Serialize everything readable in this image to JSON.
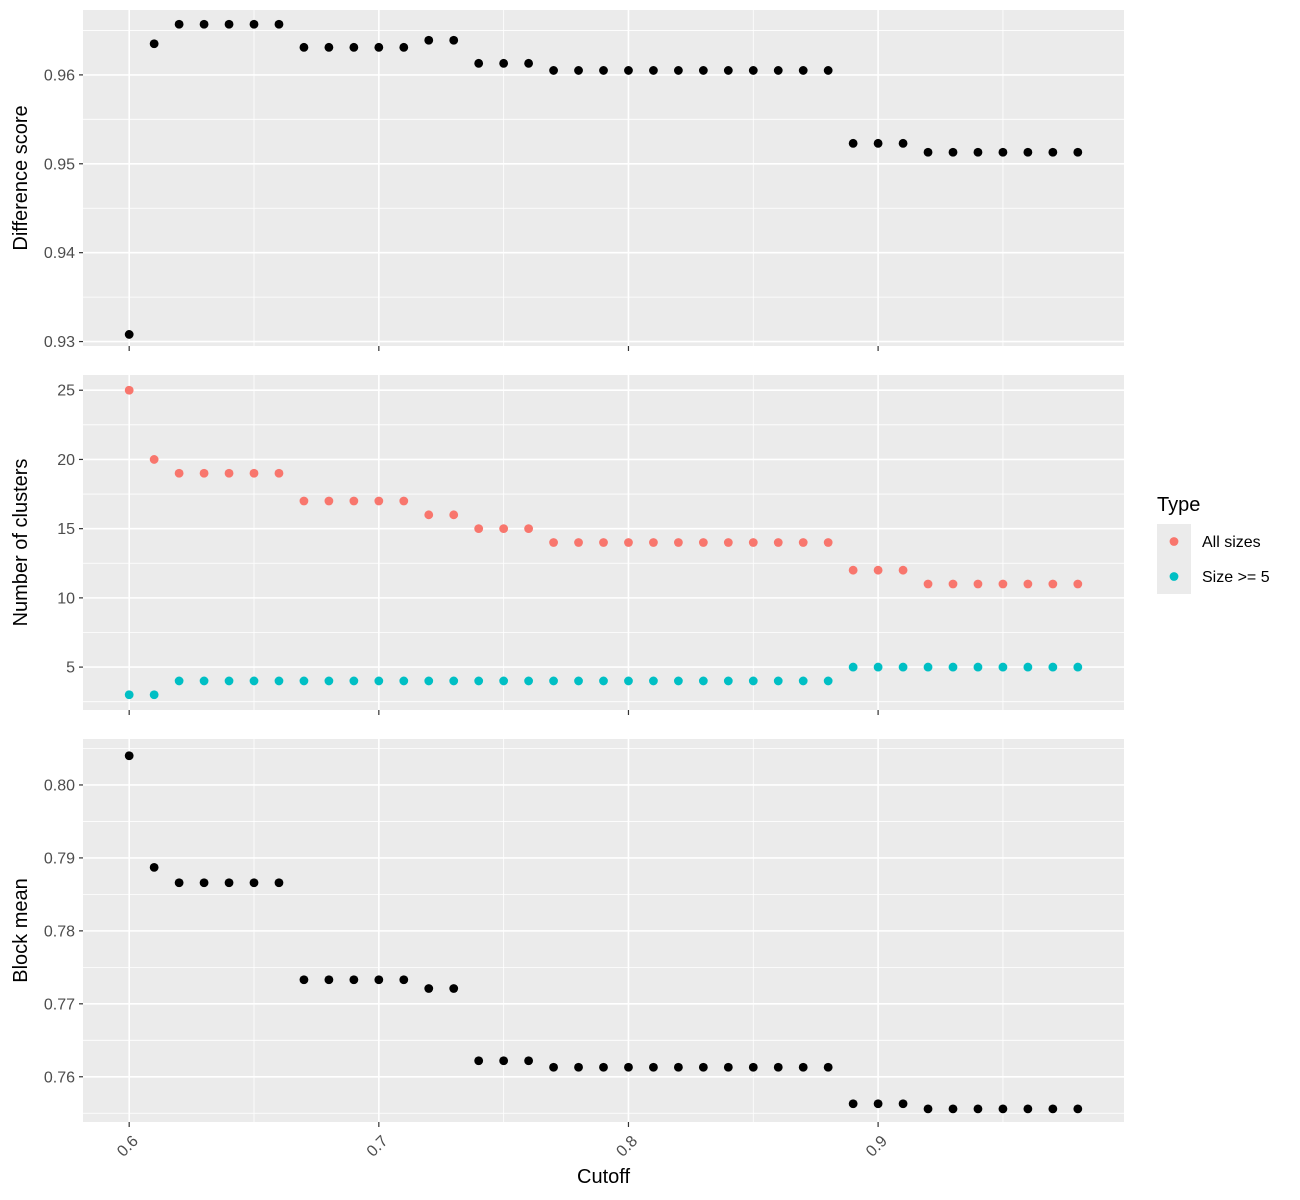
{
  "chart_data": {
    "type": "scatter",
    "xlabel": "Cutoff",
    "x_ticks": [
      "0.6",
      "0.7",
      "0.8",
      "0.9"
    ],
    "x_tick_values": [
      0.6,
      0.7,
      0.8,
      0.9
    ],
    "xlim": [
      0.5815,
      0.9985
    ],
    "x_tick_label_rotation_deg": -45,
    "x": [
      0.6,
      0.61,
      0.62,
      0.63,
      0.64,
      0.65,
      0.66,
      0.67,
      0.68,
      0.69,
      0.7,
      0.71,
      0.72,
      0.73,
      0.74,
      0.75,
      0.76,
      0.77,
      0.78,
      0.79,
      0.8,
      0.81,
      0.82,
      0.83,
      0.84,
      0.85,
      0.86,
      0.87,
      0.88,
      0.89,
      0.9,
      0.91,
      0.92,
      0.93,
      0.94,
      0.95,
      0.96,
      0.97,
      0.98
    ],
    "grid": true,
    "background": "#ebebeb",
    "panels": [
      {
        "ylabel": "Difference score",
        "ylim": [
          0.9295,
          0.9673
        ],
        "y_ticks": [
          0.93,
          0.94,
          0.95,
          0.96
        ],
        "y_tick_labels": [
          "0.93",
          "0.94",
          "0.95",
          "0.96"
        ],
        "series": [
          {
            "color": "#000000",
            "values": [
              0.9308,
              0.9635,
              0.9657,
              0.9657,
              0.9657,
              0.9657,
              0.9657,
              0.9631,
              0.9631,
              0.9631,
              0.9631,
              0.9631,
              0.9639,
              0.9639,
              0.9613,
              0.9613,
              0.9613,
              0.9605,
              0.9605,
              0.9605,
              0.9605,
              0.9605,
              0.9605,
              0.9605,
              0.9605,
              0.9605,
              0.9605,
              0.9605,
              0.9605,
              0.9523,
              0.9523,
              0.9523,
              0.9513,
              0.9513,
              0.9513,
              0.9513,
              0.9513,
              0.9513,
              0.9513
            ]
          }
        ]
      },
      {
        "ylabel": "Number of clusters",
        "ylim": [
          1.9,
          26.1
        ],
        "y_ticks": [
          5,
          10,
          15,
          20,
          25
        ],
        "y_tick_labels": [
          "5",
          "10",
          "15",
          "20",
          "25"
        ],
        "series": [
          {
            "name": "All sizes",
            "color": "#f8766d",
            "values": [
              25,
              20,
              19,
              19,
              19,
              19,
              19,
              17,
              17,
              17,
              17,
              17,
              16,
              16,
              15,
              15,
              15,
              14,
              14,
              14,
              14,
              14,
              14,
              14,
              14,
              14,
              14,
              14,
              14,
              12,
              12,
              12,
              11,
              11,
              11,
              11,
              11,
              11,
              11
            ]
          },
          {
            "name": "Size >= 5",
            "color": "#00bfc4",
            "values": [
              3,
              3,
              4,
              4,
              4,
              4,
              4,
              4,
              4,
              4,
              4,
              4,
              4,
              4,
              4,
              4,
              4,
              4,
              4,
              4,
              4,
              4,
              4,
              4,
              4,
              4,
              4,
              4,
              4,
              5,
              5,
              5,
              5,
              5,
              5,
              5,
              5,
              5,
              5
            ]
          }
        ]
      },
      {
        "ylabel": "Block mean",
        "ylim": [
          0.7538,
          0.8063
        ],
        "y_ticks": [
          0.76,
          0.77,
          0.78,
          0.79,
          0.8
        ],
        "y_tick_labels": [
          "0.76",
          "0.77",
          "0.78",
          "0.79",
          "0.80"
        ],
        "series": [
          {
            "color": "#000000",
            "values": [
              0.804,
              0.7887,
              0.7866,
              0.7866,
              0.7866,
              0.7866,
              0.7866,
              0.7733,
              0.7733,
              0.7733,
              0.7733,
              0.7733,
              0.7721,
              0.7721,
              0.7622,
              0.7622,
              0.7622,
              0.7613,
              0.7613,
              0.7613,
              0.7613,
              0.7613,
              0.7613,
              0.7613,
              0.7613,
              0.7613,
              0.7613,
              0.7613,
              0.7613,
              0.7563,
              0.7563,
              0.7563,
              0.7556,
              0.7556,
              0.7556,
              0.7556,
              0.7556,
              0.7556,
              0.7556
            ]
          }
        ]
      }
    ],
    "legend": {
      "title": "Type",
      "placement": "right",
      "entries": [
        {
          "label": "All sizes",
          "color": "#f8766d"
        },
        {
          "label": "Size >= 5",
          "color": "#00bfc4"
        }
      ]
    }
  }
}
